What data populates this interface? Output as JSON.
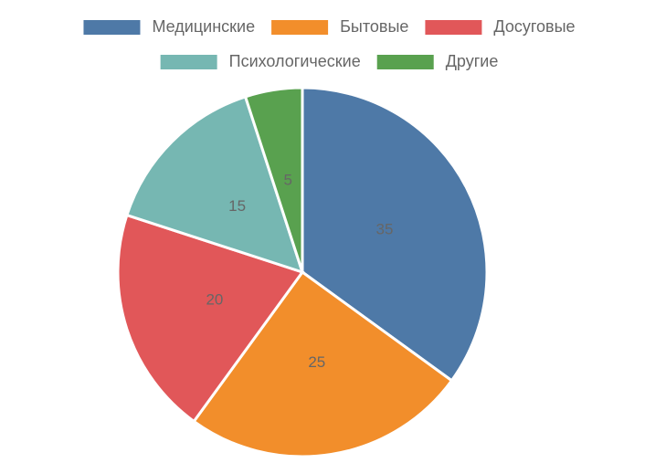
{
  "chart_data": {
    "type": "pie",
    "categories": [
      "Медицинские",
      "Бытовые",
      "Досуговые",
      "Психологические",
      "Другие"
    ],
    "values": [
      35,
      25,
      20,
      15,
      5
    ],
    "colors": [
      "#4e79a7",
      "#f28e2b",
      "#e15759",
      "#76b7b2",
      "#59a14f"
    ],
    "legend": "top"
  }
}
